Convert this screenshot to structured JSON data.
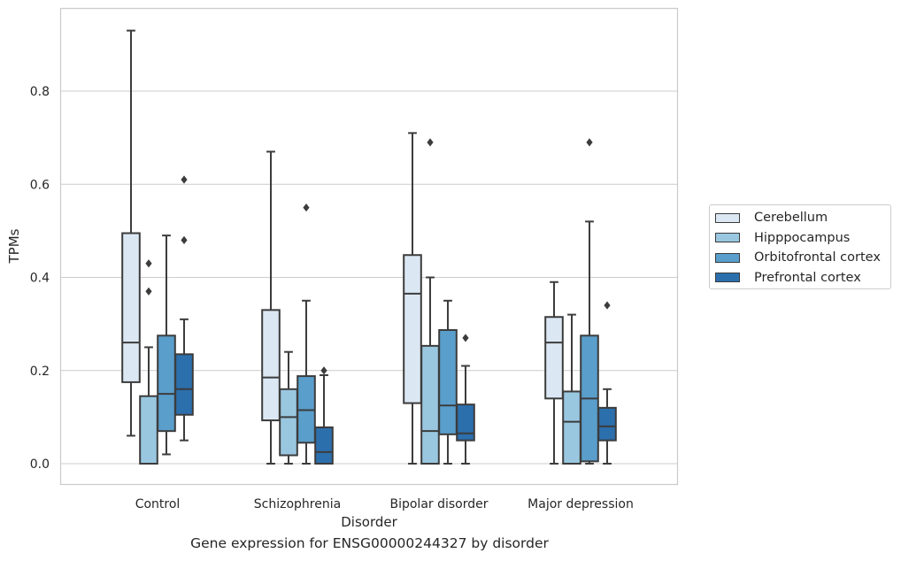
{
  "chart_data": {
    "type": "box",
    "title": "",
    "xlabel": "Disorder",
    "ylabel": "TPMs",
    "ylim": [
      -0.045,
      0.98
    ],
    "yticks": [
      0.0,
      0.2,
      0.4,
      0.6,
      0.8
    ],
    "ytick_labels": [
      "0.0",
      "0.2",
      "0.4",
      "0.6",
      "0.8"
    ],
    "grid": "horizontal",
    "legend_position": "right",
    "categories": [
      "Control",
      "Schizophrenia",
      "Bipolar disorder",
      "Major depression"
    ],
    "series": [
      {
        "name": "Cerebellum",
        "color": "#dbe8f4",
        "boxes": [
          {
            "whislo": 0.06,
            "q1": 0.175,
            "med": 0.26,
            "q3": 0.495,
            "whishi": 0.93,
            "fliers": []
          },
          {
            "whislo": 0.0,
            "q1": 0.093,
            "med": 0.185,
            "q3": 0.33,
            "whishi": 0.67,
            "fliers": []
          },
          {
            "whislo": 0.0,
            "q1": 0.13,
            "med": 0.365,
            "q3": 0.448,
            "whishi": 0.71,
            "fliers": []
          },
          {
            "whislo": 0.0,
            "q1": 0.14,
            "med": 0.26,
            "q3": 0.315,
            "whishi": 0.39,
            "fliers": []
          }
        ]
      },
      {
        "name": "Hipppocampus",
        "color": "#9ac7e0",
        "boxes": [
          {
            "whislo": 0.0,
            "q1": 0.0,
            "med": 0.0,
            "q3": 0.145,
            "whishi": 0.25,
            "fliers": [
              0.37,
              0.43
            ]
          },
          {
            "whislo": 0.0,
            "q1": 0.018,
            "med": 0.1,
            "q3": 0.16,
            "whishi": 0.24,
            "fliers": []
          },
          {
            "whislo": 0.0,
            "q1": 0.0,
            "med": 0.07,
            "q3": 0.253,
            "whishi": 0.4,
            "fliers": [
              0.69
            ]
          },
          {
            "whislo": 0.0,
            "q1": 0.0,
            "med": 0.09,
            "q3": 0.155,
            "whishi": 0.32,
            "fliers": []
          }
        ]
      },
      {
        "name": "Orbitofrontal cortex",
        "color": "#5a9ecb",
        "boxes": [
          {
            "whislo": 0.02,
            "q1": 0.07,
            "med": 0.15,
            "q3": 0.275,
            "whishi": 0.49,
            "fliers": []
          },
          {
            "whislo": 0.0,
            "q1": 0.045,
            "med": 0.115,
            "q3": 0.188,
            "whishi": 0.35,
            "fliers": [
              0.55
            ]
          },
          {
            "whislo": 0.0,
            "q1": 0.063,
            "med": 0.125,
            "q3": 0.287,
            "whishi": 0.35,
            "fliers": []
          },
          {
            "whislo": 0.0,
            "q1": 0.005,
            "med": 0.14,
            "q3": 0.275,
            "whishi": 0.52,
            "fliers": [
              0.69
            ]
          }
        ]
      },
      {
        "name": "Prefrontal cortex",
        "color": "#2c6fad",
        "boxes": [
          {
            "whislo": 0.05,
            "q1": 0.105,
            "med": 0.16,
            "q3": 0.235,
            "whishi": 0.31,
            "fliers": [
              0.48,
              0.61
            ]
          },
          {
            "whislo": 0.0,
            "q1": 0.0,
            "med": 0.025,
            "q3": 0.078,
            "whishi": 0.19,
            "fliers": [
              0.2
            ]
          },
          {
            "whislo": 0.0,
            "q1": 0.05,
            "med": 0.065,
            "q3": 0.127,
            "whishi": 0.21,
            "fliers": [
              0.27
            ]
          },
          {
            "whislo": 0.0,
            "q1": 0.05,
            "med": 0.08,
            "q3": 0.12,
            "whishi": 0.16,
            "fliers": [
              0.34
            ]
          }
        ]
      }
    ]
  },
  "caption": "Gene expression for ENSG00000244327 by disorder"
}
